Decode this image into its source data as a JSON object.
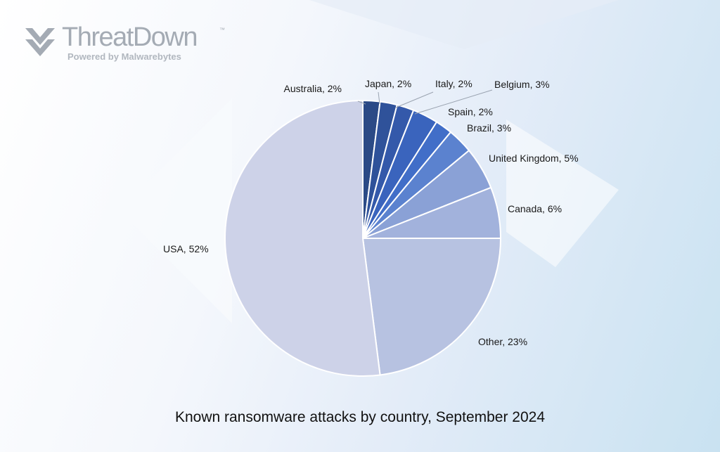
{
  "brand": {
    "name": "ThreatDown",
    "trademark": "™",
    "tagline_prefix": "Powered by",
    "tagline_brand": "Malwarebytes",
    "logo_icon": "threatdown-chevron-icon"
  },
  "chart_data": {
    "type": "pie",
    "title": "Known ransomware attacks by country, September 2024",
    "slices": [
      {
        "label": "Australia",
        "value": 2,
        "display": "Australia, 2%",
        "color": "#2b4a86"
      },
      {
        "label": "Japan",
        "value": 2,
        "display": "Japan, 2%",
        "color": "#2f529a"
      },
      {
        "label": "Italy",
        "value": 2,
        "display": "Italy, 2%",
        "color": "#3459aa"
      },
      {
        "label": "Belgium",
        "value": 3,
        "display": "Belgium, 3%",
        "color": "#3a64bd"
      },
      {
        "label": "Spain",
        "value": 2,
        "display": "Spain, 2%",
        "color": "#416ec8"
      },
      {
        "label": "Brazil",
        "value": 3,
        "display": "Brazil, 3%",
        "color": "#5b82cf"
      },
      {
        "label": "United Kingdom",
        "value": 5,
        "display": "United Kingdom, 5%",
        "color": "#8aa1d6"
      },
      {
        "label": "Canada",
        "value": 6,
        "display": "Canada, 6%",
        "color": "#a2b2dc"
      },
      {
        "label": "Other",
        "value": 23,
        "display": "Other, 23%",
        "color": "#b7c2e1"
      },
      {
        "label": "USA",
        "value": 52,
        "display": "USA, 52%",
        "color": "#cdd2e8"
      }
    ],
    "start_angle_deg": 0,
    "direction": "clockwise"
  }
}
